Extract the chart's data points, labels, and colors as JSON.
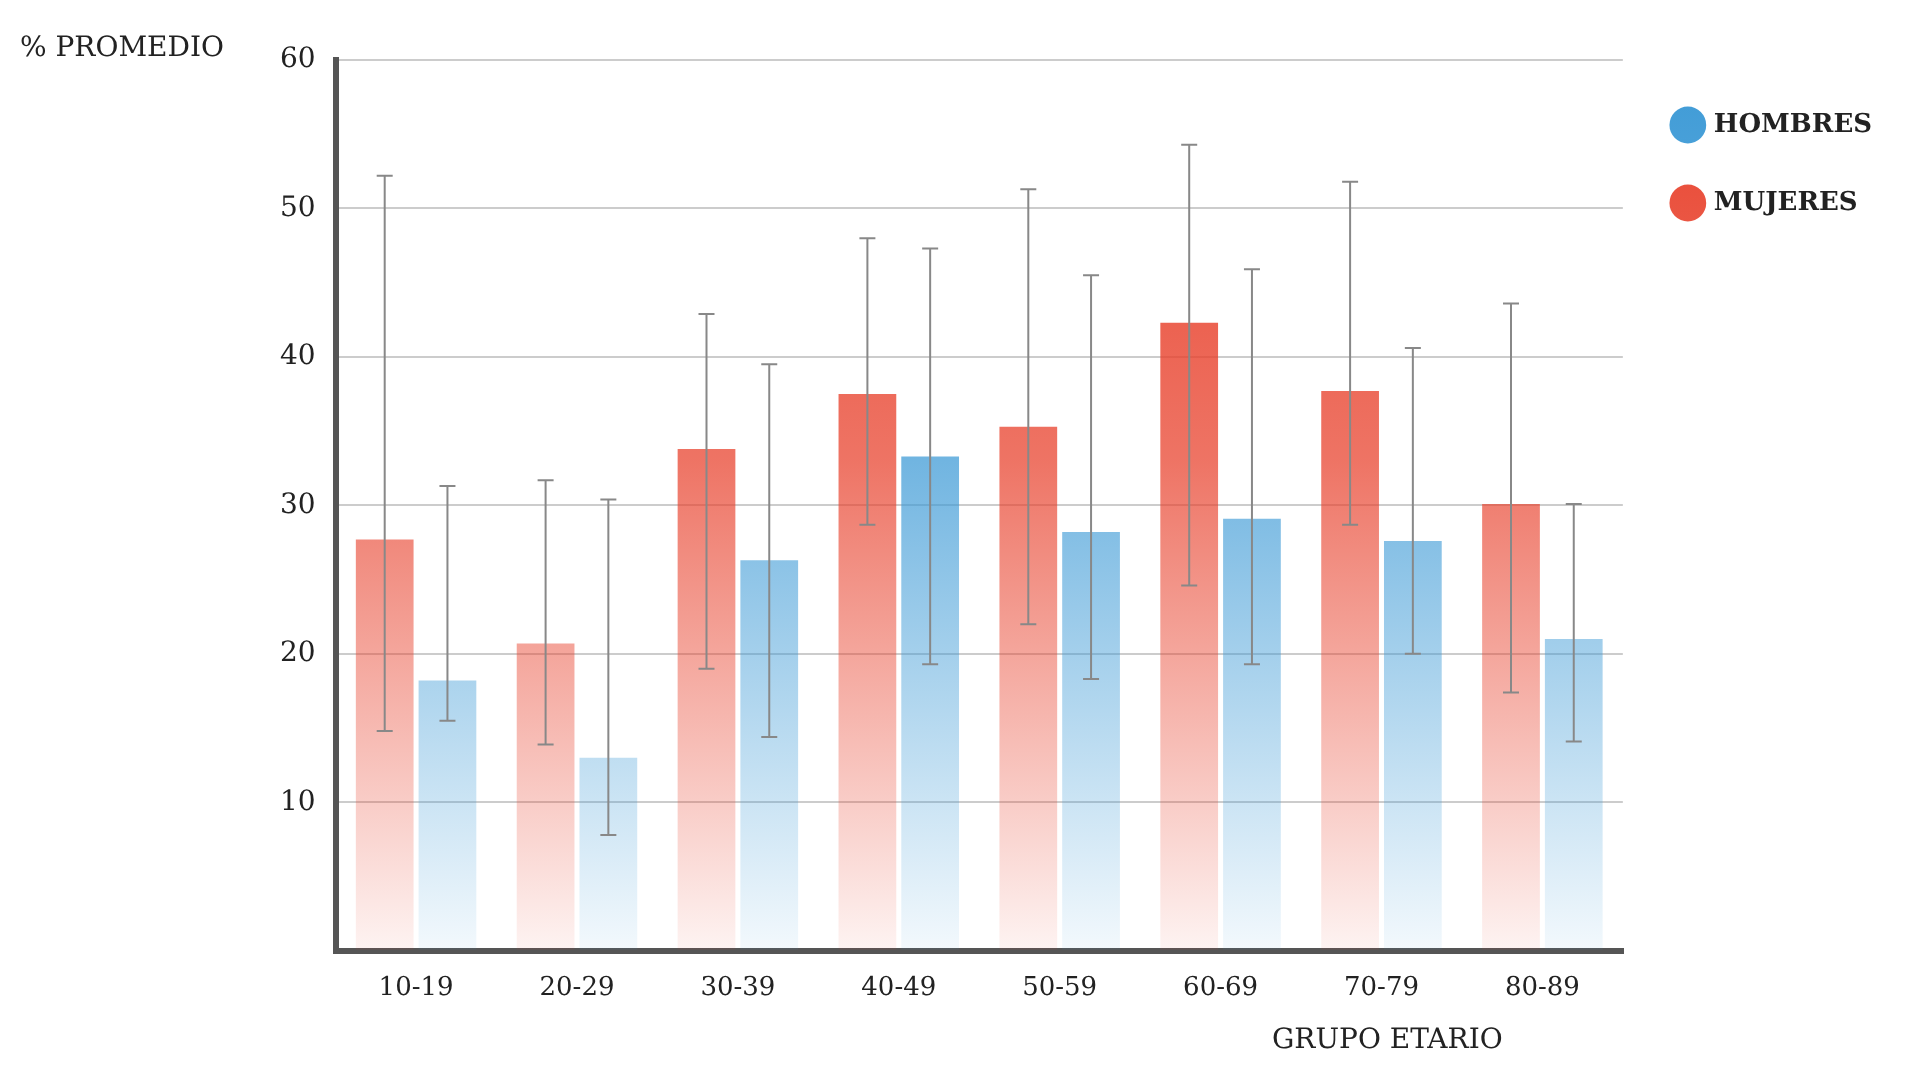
{
  "chart_data": {
    "type": "bar",
    "ylabel": "% PROMEDIO",
    "xlabel": "GRUPO ETARIO",
    "categories": [
      "10-19",
      "20-29",
      "30-39",
      "40-49",
      "50-59",
      "60-69",
      "70-79",
      "80-89"
    ],
    "series": [
      {
        "name": "MUJERES",
        "color": "#e8412c",
        "values": [
          27.7,
          20.7,
          33.8,
          37.5,
          35.3,
          42.3,
          37.7,
          30.1
        ],
        "errors": [
          [
            14.8,
            52.2
          ],
          [
            13.9,
            31.7
          ],
          [
            19.0,
            42.9
          ],
          [
            28.7,
            48.0
          ],
          [
            22.0,
            51.3
          ],
          [
            24.6,
            54.3
          ],
          [
            28.7,
            51.8
          ],
          [
            17.4,
            43.6
          ]
        ]
      },
      {
        "name": "HOMBRES",
        "color": "#3d9ad6",
        "values": [
          18.2,
          13.0,
          26.3,
          33.3,
          28.2,
          29.1,
          27.6,
          21.0
        ],
        "errors": [
          [
            15.5,
            31.3
          ],
          [
            7.8,
            30.4
          ],
          [
            14.4,
            39.5
          ],
          [
            19.3,
            47.3
          ],
          [
            18.3,
            45.5
          ],
          [
            19.3,
            45.9
          ],
          [
            20.0,
            40.6
          ],
          [
            14.1,
            30.1
          ]
        ]
      }
    ],
    "ylim": [
      0,
      60
    ],
    "yticks": [
      {
        "value": 0,
        "label": null
      },
      10,
      20,
      30,
      40,
      50,
      60
    ],
    "grid": "y",
    "legend": "top right"
  }
}
